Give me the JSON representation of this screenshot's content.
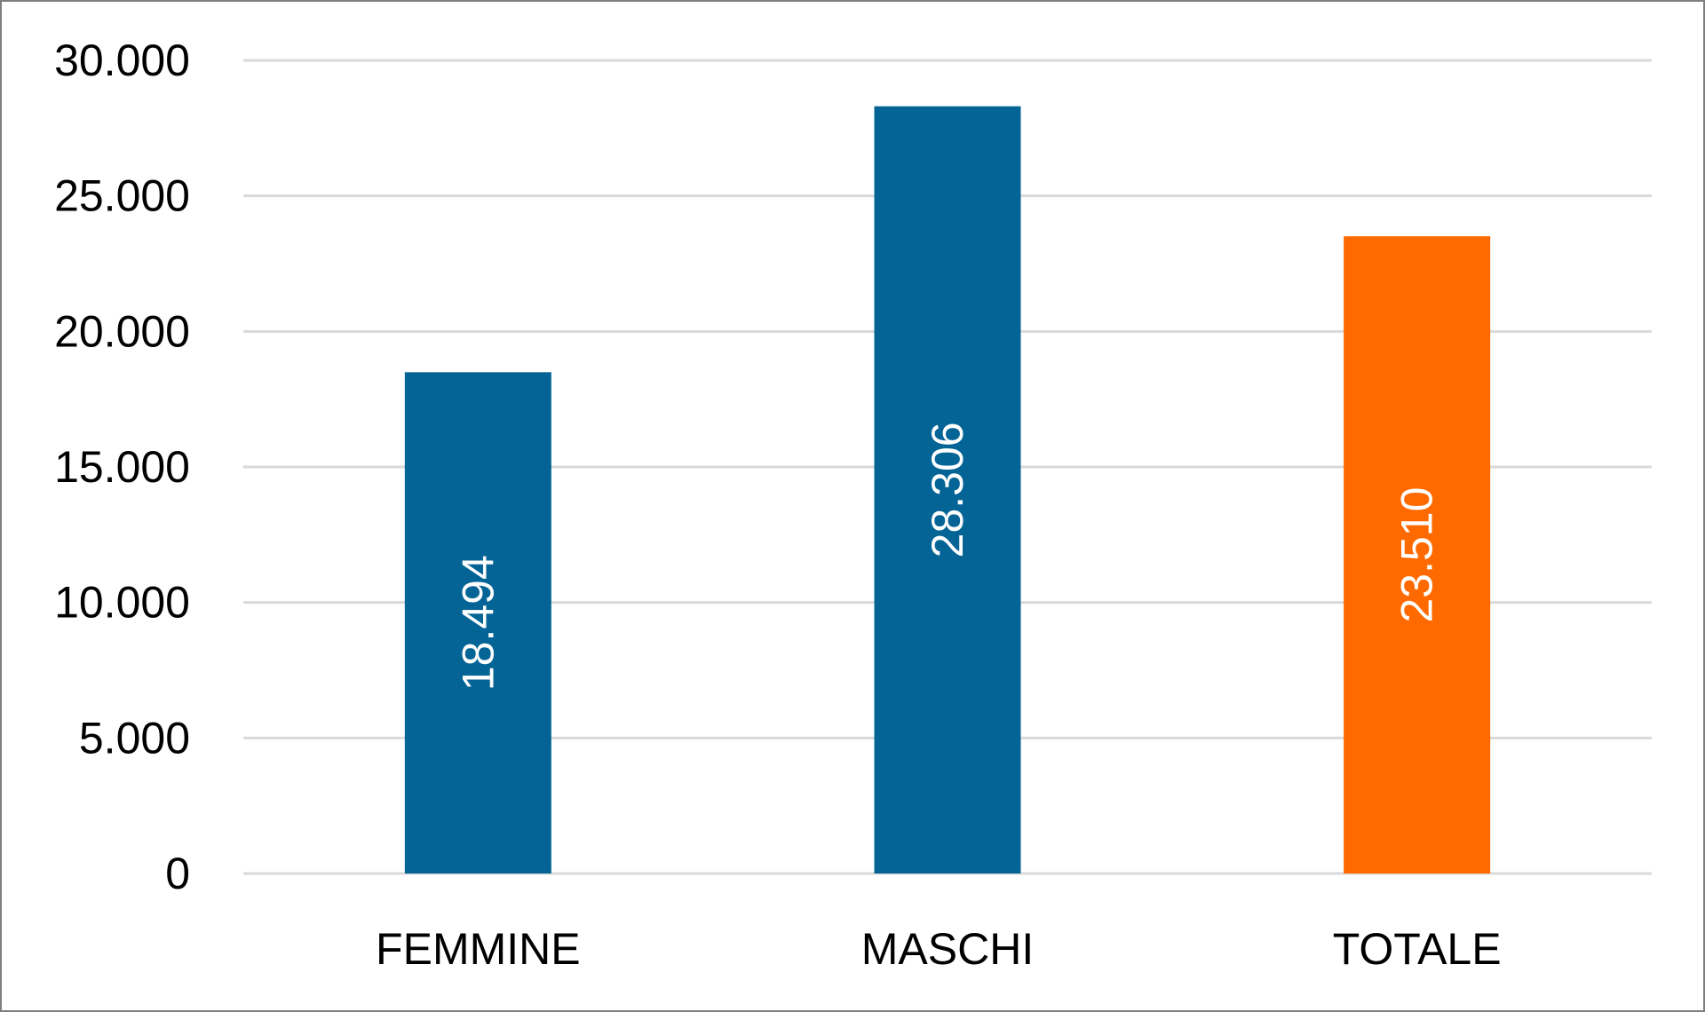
{
  "chart_data": {
    "type": "bar",
    "categories": [
      "FEMMINE",
      "MASCHI",
      "TOTALE"
    ],
    "values": [
      18494,
      28306,
      23510
    ],
    "value_labels": [
      "18.494",
      "28.306",
      "23.510"
    ],
    "bar_colors": [
      "#046496",
      "#046496",
      "#ff6a00"
    ],
    "label_color": "#ffffff",
    "gridline_color": "#d9d9d9",
    "ylim": [
      0,
      30000
    ],
    "y_ticks": [
      0,
      5000,
      10000,
      15000,
      20000,
      25000,
      30000
    ],
    "y_tick_labels": [
      "0",
      "5.000",
      "10.000",
      "15.000",
      "20.000",
      "25.000",
      "30.000"
    ],
    "title": "",
    "xlabel": "",
    "ylabel": "",
    "grid": true,
    "legend": "none"
  }
}
